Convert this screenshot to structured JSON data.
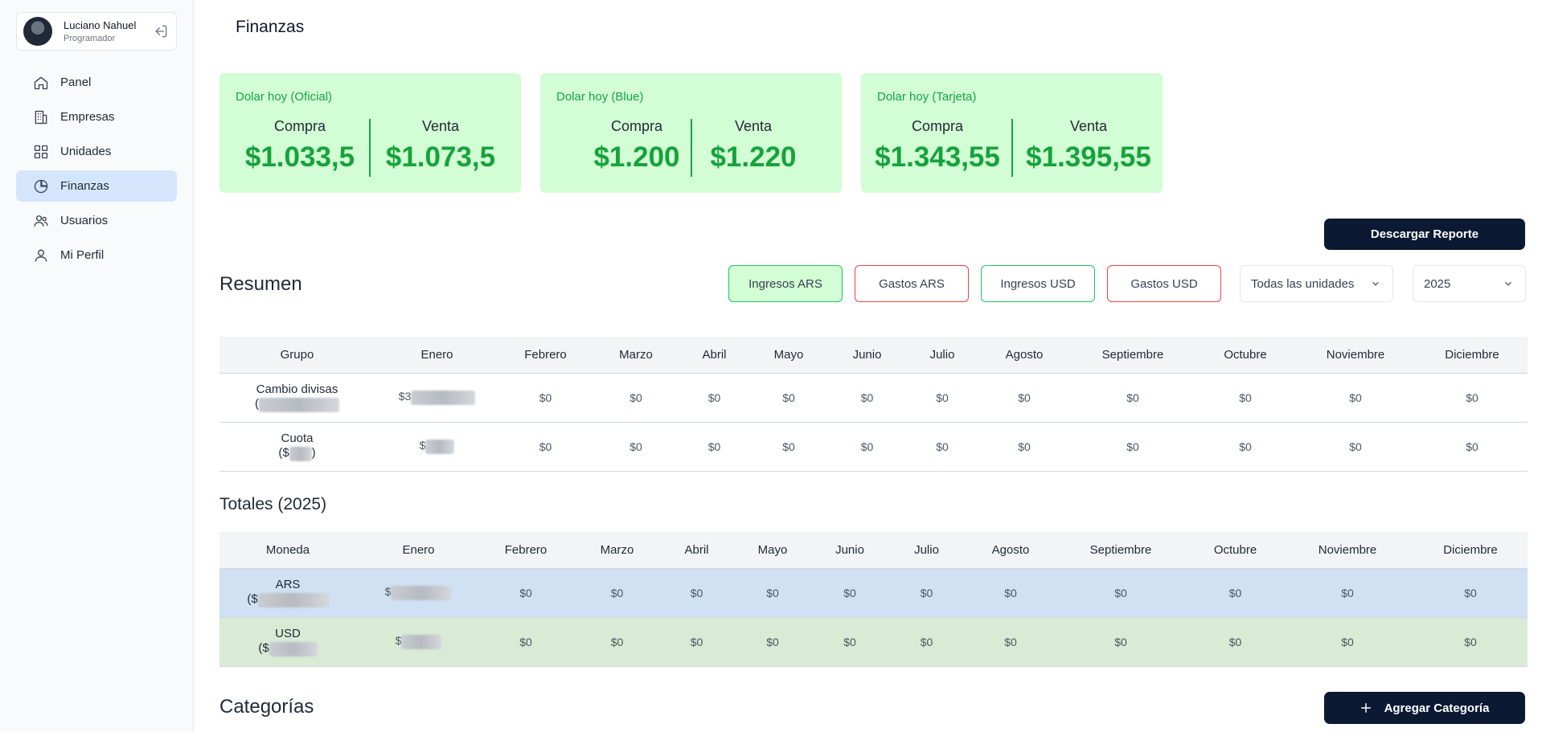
{
  "user": {
    "name": "Luciano Nahuel",
    "role": "Programador"
  },
  "nav": [
    {
      "label": "Panel",
      "icon": "home-icon",
      "active": false
    },
    {
      "label": "Empresas",
      "icon": "building-icon",
      "active": false
    },
    {
      "label": "Unidades",
      "icon": "grid-icon",
      "active": false
    },
    {
      "label": "Finanzas",
      "icon": "pie-chart-icon",
      "active": true
    },
    {
      "label": "Usuarios",
      "icon": "users-icon",
      "active": false
    },
    {
      "label": "Mi Perfil",
      "icon": "user-icon",
      "active": false
    }
  ],
  "page_title": "Finanzas",
  "dolar": [
    {
      "label": "Dolar hoy (Oficial)",
      "compra_label": "Compra",
      "compra": "$1.033,5",
      "venta_label": "Venta",
      "venta": "$1.073,5"
    },
    {
      "label": "Dolar hoy (Blue)",
      "compra_label": "Compra",
      "compra": "$1.200",
      "venta_label": "Venta",
      "venta": "$1.220"
    },
    {
      "label": "Dolar hoy (Tarjeta)",
      "compra_label": "Compra",
      "compra": "$1.343,55",
      "venta_label": "Venta",
      "venta": "$1.395,55"
    }
  ],
  "download_label": "Descargar Reporte",
  "resumen": {
    "title": "Resumen",
    "filters": [
      "Ingresos ARS",
      "Gastos ARS",
      "Ingresos USD",
      "Gastos USD"
    ],
    "unit_select": "Todas las unidades",
    "year_select": "2025",
    "headers": [
      "Grupo",
      "Enero",
      "Febrero",
      "Marzo",
      "Abril",
      "Mayo",
      "Junio",
      "Julio",
      "Agosto",
      "Septiembre",
      "Octubre",
      "Noviembre",
      "Diciembre"
    ],
    "rows": [
      {
        "group": "Cambio divisas",
        "group_sub": "(",
        "enero": "$3",
        "months": [
          "$0",
          "$0",
          "$0",
          "$0",
          "$0",
          "$0",
          "$0",
          "$0",
          "$0",
          "$0",
          "$0"
        ]
      },
      {
        "group": "Cuota",
        "group_sub": "($",
        "group_sub_end": ")",
        "enero": "$",
        "months": [
          "$0",
          "$0",
          "$0",
          "$0",
          "$0",
          "$0",
          "$0",
          "$0",
          "$0",
          "$0",
          "$0"
        ]
      }
    ]
  },
  "totales": {
    "title": "Totales (2025)",
    "headers": [
      "Moneda",
      "Enero",
      "Febrero",
      "Marzo",
      "Abril",
      "Mayo",
      "Junio",
      "Julio",
      "Agosto",
      "Septiembre",
      "Octubre",
      "Noviembre",
      "Diciembre"
    ],
    "rows": [
      {
        "currency": "ARS",
        "sub": "($",
        "enero": "$",
        "months": [
          "$0",
          "$0",
          "$0",
          "$0",
          "$0",
          "$0",
          "$0",
          "$0",
          "$0",
          "$0",
          "$0"
        ]
      },
      {
        "currency": "USD",
        "sub": "($",
        "enero": "$",
        "months": [
          "$0",
          "$0",
          "$0",
          "$0",
          "$0",
          "$0",
          "$0",
          "$0",
          "$0",
          "$0",
          "$0"
        ]
      }
    ]
  },
  "categorias": {
    "title": "Categorías",
    "add_label": "Agregar Categoría"
  },
  "colors": {
    "accent_green": "#15a33b",
    "card_green": "#d3fdd4",
    "dark_button": "#0b1933",
    "active_nav": "#d5e5fb",
    "ars_row": "#cfe1f3",
    "usd_row": "#d9ebd5"
  }
}
